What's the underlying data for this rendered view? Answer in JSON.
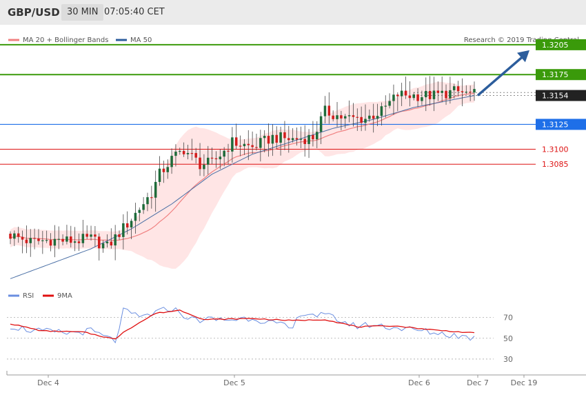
{
  "header": {
    "symbol": "GBP/USD",
    "timeframe": "30 MIN",
    "time": "07:05:40 CET"
  },
  "legend": {
    "ma20_label": "MA 20 + Bollinger Bands",
    "ma50_label": "MA 50",
    "copyright": "Research © 2019 Trading Central",
    "rsi_label": "RSI",
    "rsi_ma_label": "9MA"
  },
  "colors": {
    "resistance": "#3a9a0a",
    "support": "#1e6fe8",
    "pivot": "#222222",
    "minor": "#dd1111",
    "bullish": "#1e6b3a",
    "bearish": "#d21c1c",
    "ma20": "#f08080",
    "ma50": "#4a6fa5",
    "band_fill": "#ffe0e0",
    "arrow": "#2c5d9c",
    "rsi": "#6a8ee0",
    "rsi_ma": "#e01010"
  },
  "chart_data": [
    {
      "type": "candlestick",
      "title": "GBP/USD 30 MIN",
      "x_ticks": [
        "Dec 4",
        "Dec 5",
        "Dec 6",
        "Dec 7",
        "Dec 19"
      ],
      "levels": [
        {
          "value": 1.3205,
          "label": "1.3205",
          "kind": "resistance"
        },
        {
          "value": 1.3175,
          "label": "1.3175",
          "kind": "resistance"
        },
        {
          "value": 1.3154,
          "label": "1.3154",
          "kind": "pivot"
        },
        {
          "value": 1.3125,
          "label": "1.3125",
          "kind": "support"
        },
        {
          "value": 1.31,
          "label": "1.3100",
          "kind": "minor"
        },
        {
          "value": 1.3085,
          "label": "1.3085",
          "kind": "minor"
        }
      ],
      "ylim": [
        1.2955,
        1.3225
      ],
      "projection": {
        "from": 1.3154,
        "to": 1.3205,
        "direction": "up"
      },
      "close_anchors": [
        [
          0,
          1.3014
        ],
        [
          5,
          1.3007
        ],
        [
          10,
          1.3009
        ],
        [
          15,
          1.3008
        ],
        [
          20,
          1.301
        ],
        [
          24,
          1.3002
        ],
        [
          30,
          1.303
        ],
        [
          33,
          1.3046
        ],
        [
          35,
          1.3056
        ],
        [
          37,
          1.3075
        ],
        [
          40,
          1.309
        ],
        [
          43,
          1.31
        ],
        [
          47,
          1.3085
        ],
        [
          50,
          1.3086
        ],
        [
          55,
          1.3107
        ],
        [
          60,
          1.3102
        ],
        [
          65,
          1.3112
        ],
        [
          70,
          1.311
        ],
        [
          75,
          1.3112
        ],
        [
          78,
          1.3138
        ],
        [
          83,
          1.3131
        ],
        [
          88,
          1.3131
        ],
        [
          92,
          1.3138
        ],
        [
          96,
          1.3155
        ],
        [
          100,
          1.3154
        ],
        [
          105,
          1.3154
        ],
        [
          110,
          1.3158
        ],
        [
          115,
          1.3155
        ]
      ],
      "ma50_anchors": [
        [
          0,
          1.297
        ],
        [
          10,
          1.2985
        ],
        [
          20,
          1.3
        ],
        [
          30,
          1.302
        ],
        [
          40,
          1.3045
        ],
        [
          50,
          1.3075
        ],
        [
          60,
          1.3095
        ],
        [
          70,
          1.3108
        ],
        [
          80,
          1.3121
        ],
        [
          90,
          1.313
        ],
        [
          100,
          1.3142
        ],
        [
          115,
          1.3154
        ]
      ]
    },
    {
      "type": "line",
      "title": "RSI",
      "y_ticks": [
        70,
        50,
        30
      ],
      "ylim": [
        20,
        85
      ],
      "series": [
        {
          "name": "RSI",
          "anchors": [
            [
              0,
              62
            ],
            [
              6,
              57
            ],
            [
              14,
              55
            ],
            [
              20,
              57
            ],
            [
              26,
              47
            ],
            [
              28,
              76
            ],
            [
              32,
              70
            ],
            [
              40,
              79
            ],
            [
              45,
              68
            ],
            [
              55,
              68
            ],
            [
              60,
              70
            ],
            [
              70,
              59
            ],
            [
              72,
              75
            ],
            [
              80,
              70
            ],
            [
              85,
              62
            ],
            [
              90,
              63
            ],
            [
              100,
              58
            ],
            [
              112,
              52
            ],
            [
              115,
              50
            ]
          ]
        },
        {
          "name": "9MA",
          "anchors": [
            [
              0,
              64
            ],
            [
              8,
              57
            ],
            [
              18,
              56
            ],
            [
              26,
              49
            ],
            [
              28,
              56
            ],
            [
              36,
              74
            ],
            [
              42,
              77
            ],
            [
              48,
              68
            ],
            [
              60,
              69
            ],
            [
              70,
              67
            ],
            [
              78,
              68
            ],
            [
              86,
              61
            ],
            [
              95,
              62
            ],
            [
              105,
              58
            ],
            [
              115,
              55
            ]
          ]
        }
      ]
    }
  ]
}
